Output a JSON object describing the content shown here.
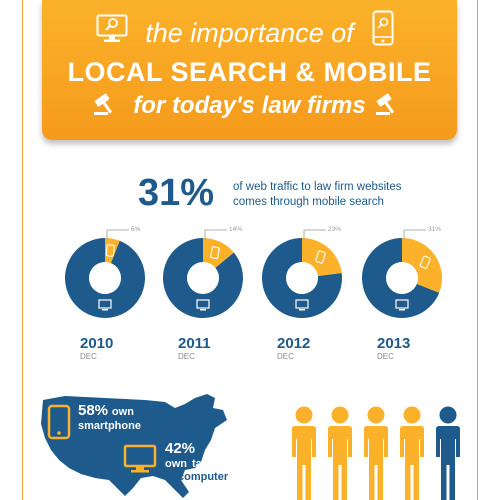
{
  "header": {
    "line1": "the importance of",
    "line2": "LOCAL SEARCH & MOBILE",
    "line3": "for today's law firms"
  },
  "headline_stat": {
    "value": "31%",
    "text_line1": "of web traffic to law firm websites",
    "text_line2": "comes through mobile search"
  },
  "colors": {
    "orange": "#fbb22a",
    "blue": "#1e5a8c",
    "grey": "#999999"
  },
  "icons": [
    "desktop-search-icon",
    "mobile-search-icon",
    "gavel-icon",
    "smartphone-icon",
    "monitor-icon",
    "person-icon"
  ],
  "chart_data": [
    {
      "type": "pie",
      "series": [
        {
          "year": "2010",
          "month": "DEC",
          "mobile_pct": 6,
          "label": "6%"
        },
        {
          "year": "2011",
          "month": "DEC",
          "mobile_pct": 14,
          "label": "14%"
        },
        {
          "year": "2012",
          "month": "DEC",
          "mobile_pct": 23,
          "label": "23%"
        },
        {
          "year": "2013",
          "month": "DEC",
          "mobile_pct": 31,
          "label": "31%"
        }
      ]
    }
  ],
  "map": {
    "stat1_value": "58%",
    "stat1_word": "own",
    "stat1_label": "smartphone",
    "stat2_value": "42%",
    "stat2_word": "own",
    "stat2_label1": "tablet",
    "stat2_label2": "computer"
  },
  "people": {
    "total": 5,
    "highlighted_orange": 4
  }
}
